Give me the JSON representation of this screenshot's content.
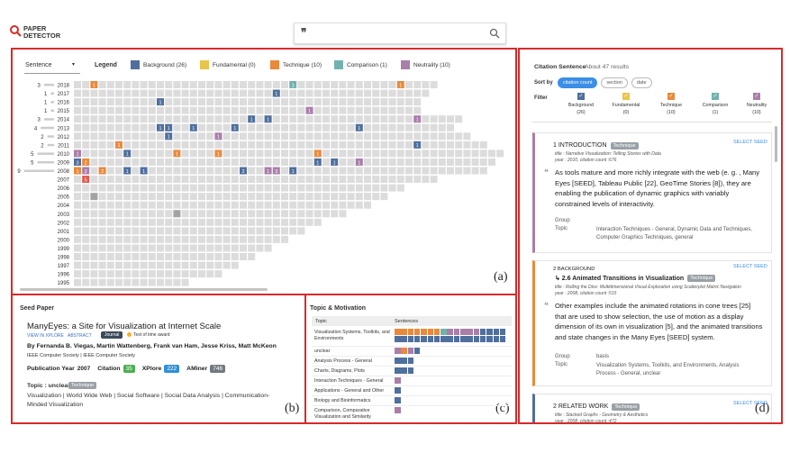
{
  "header": {
    "logo": [
      "PAPER",
      "DETECTOR"
    ]
  },
  "panel_labels": [
    "(a)",
    "(b)",
    "(c)",
    "(d)"
  ],
  "overview": {
    "mode": "Sentence",
    "legend_title": "Legend",
    "legend": [
      {
        "label": "Background (26)",
        "color": "#4f6f9d"
      },
      {
        "label": "Fundamental (0)",
        "color": "#e9c44b"
      },
      {
        "label": "Technique (10)",
        "color": "#e8893b"
      },
      {
        "label": "Comparison (1)",
        "color": "#72b2ae"
      },
      {
        "label": "Neutrality (10)",
        "color": "#a97ea9"
      }
    ],
    "rows": [
      {
        "year": 2018,
        "count": 3,
        "papers": 44,
        "cited": [
          {
            "at": 2,
            "kind": 2,
            "n": 1
          },
          {
            "at": 26,
            "kind": 3,
            "n": 1
          },
          {
            "at": 39,
            "kind": 2,
            "n": 1
          }
        ]
      },
      {
        "year": 2017,
        "count": 1,
        "papers": 43,
        "cited": [
          {
            "at": 24,
            "kind": 0,
            "n": 1
          }
        ]
      },
      {
        "year": 2016,
        "count": 1,
        "papers": 42,
        "cited": [
          {
            "at": 10,
            "kind": 0,
            "n": 1
          }
        ]
      },
      {
        "year": 2015,
        "count": 1,
        "papers": 42,
        "cited": [
          {
            "at": 28,
            "kind": 4,
            "n": 1
          }
        ]
      },
      {
        "year": 2014,
        "count": 3,
        "papers": 47,
        "cited": [
          {
            "at": 21,
            "kind": 0,
            "n": 1
          },
          {
            "at": 23,
            "kind": 0,
            "n": 1
          },
          {
            "at": 41,
            "kind": 4,
            "n": 1
          }
        ]
      },
      {
        "year": 2013,
        "count": 4,
        "papers": 46,
        "cited": [
          {
            "at": 10,
            "kind": 0,
            "n": 1
          },
          {
            "at": 11,
            "kind": 0,
            "n": 1
          },
          {
            "at": 14,
            "kind": 0,
            "n": 1
          },
          {
            "at": 19,
            "kind": 0,
            "n": 1
          },
          {
            "at": 34,
            "kind": 0,
            "n": 1
          }
        ]
      },
      {
        "year": 2012,
        "count": 2,
        "papers": 48,
        "cited": [
          {
            "at": 11,
            "kind": 0,
            "n": 1
          },
          {
            "at": 17,
            "kind": 4,
            "n": 1
          }
        ]
      },
      {
        "year": 2011,
        "count": 2,
        "papers": 50,
        "cited": [
          {
            "at": 5,
            "kind": 2,
            "n": 1
          },
          {
            "at": 41,
            "kind": 0,
            "n": 1
          }
        ]
      },
      {
        "year": 2010,
        "count": 5,
        "papers": 52,
        "cited": [
          {
            "at": 0,
            "kind": 4,
            "n": 1
          },
          {
            "at": 6,
            "kind": 0,
            "n": 1
          },
          {
            "at": 12,
            "kind": 2,
            "n": 1
          },
          {
            "at": 17,
            "kind": 2,
            "n": 1
          },
          {
            "at": 29,
            "kind": 2,
            "n": 1
          }
        ]
      },
      {
        "year": 2009,
        "count": 5,
        "papers": 51,
        "cited": [
          {
            "at": 0,
            "kind": 0,
            "n": 3
          },
          {
            "at": 1,
            "kind": 2,
            "n": 2
          },
          {
            "at": 29,
            "kind": 0,
            "n": 1
          },
          {
            "at": 31,
            "kind": 0,
            "n": 1
          },
          {
            "at": 34,
            "kind": 4,
            "n": 1
          }
        ]
      },
      {
        "year": 2008,
        "count": 9,
        "papers": 50,
        "cited": [
          {
            "at": 0,
            "kind": 2,
            "n": 1
          },
          {
            "at": 1,
            "kind": 4,
            "n": 2
          },
          {
            "at": 3,
            "kind": 2,
            "n": 2
          },
          {
            "at": 6,
            "kind": 0,
            "n": 1
          },
          {
            "at": 8,
            "kind": 0,
            "n": 1
          },
          {
            "at": 20,
            "kind": 0,
            "n": 2
          },
          {
            "at": 23,
            "kind": 4,
            "n": 1
          },
          {
            "at": 24,
            "kind": 4,
            "n": 3
          },
          {
            "at": 26,
            "kind": 0,
            "n": 1
          }
        ]
      },
      {
        "year": 2007,
        "count": null,
        "papers": 44,
        "cited": [
          {
            "at": 1,
            "color": "#e0584f",
            "n": 5
          }
        ]
      },
      {
        "year": 2006,
        "count": null,
        "papers": 40,
        "cited": []
      },
      {
        "year": 2005,
        "count": null,
        "papers": 38,
        "cited": [
          {
            "at": 2,
            "color": "#a3a3a3"
          }
        ]
      },
      {
        "year": 2004,
        "count": null,
        "papers": 36,
        "cited": []
      },
      {
        "year": 2003,
        "count": null,
        "papers": 33,
        "cited": [
          {
            "at": 12,
            "color": "#a3a3a3"
          }
        ]
      },
      {
        "year": 2002,
        "count": null,
        "papers": 30,
        "cited": []
      },
      {
        "year": 2001,
        "count": null,
        "papers": 28,
        "cited": []
      },
      {
        "year": 2000,
        "count": null,
        "papers": 26,
        "cited": []
      },
      {
        "year": 1999,
        "count": null,
        "papers": 24,
        "cited": []
      },
      {
        "year": 1998,
        "count": null,
        "papers": 22,
        "cited": []
      },
      {
        "year": 1997,
        "count": null,
        "papers": 20,
        "cited": []
      },
      {
        "year": 1996,
        "count": null,
        "papers": 18,
        "cited": []
      },
      {
        "year": 1995,
        "count": null,
        "papers": 14,
        "cited": []
      }
    ]
  },
  "seed": {
    "heading": "Seed Paper",
    "title": "ManyEyes: a Site for Visualization at Internet Scale",
    "links": [
      "VIEW IN XPLORE",
      "ABSTRACT"
    ],
    "venue": "Journal",
    "award": "Test of time award",
    "authors": "By Fernanda B. Viegas, Martin Wattenberg, Frank van Ham, Jesse Kriss, Matt McKeon",
    "publisher": "IEEE Computer Society | IEEE Computer Society",
    "stats": [
      {
        "label": "Publication Year",
        "value": 2007
      },
      {
        "label": "Citation",
        "value": 35,
        "color": "#4caf50"
      },
      {
        "label": "XPlore",
        "value": 222,
        "color": "#2f8fd8"
      },
      {
        "label": "AMiner",
        "value": 746,
        "color": "#707a80"
      }
    ],
    "topic_label": "Topic : unclear",
    "topic_badge": "Technique",
    "topics": "Visualization | World Wide Web | Social Software | Social Data Analysis | Communication-Minded Visualization"
  },
  "topics": {
    "heading": "Topic & Motivation",
    "columns": [
      "Topic",
      "Sentences"
    ],
    "rows": [
      {
        "topic": "Visualization Systems, Toolkits, and Environments",
        "sentences": [
          2,
          2,
          2,
          2,
          2,
          2,
          2,
          3,
          4,
          4,
          4,
          4,
          4,
          0,
          0,
          0,
          0,
          0,
          0,
          0,
          0,
          0,
          0,
          0,
          0,
          0,
          0,
          0,
          0,
          0,
          0,
          0,
          0,
          0
        ]
      },
      {
        "topic": "unclear",
        "sentences": [
          4,
          2,
          4,
          0
        ]
      },
      {
        "topic": "Analysis Process - General",
        "sentences": [
          0,
          0,
          0
        ]
      },
      {
        "topic": "Charts, Diagrams, Plots",
        "sentences": [
          0,
          0,
          0
        ]
      },
      {
        "topic": "Interaction Techniques - General",
        "sentences": [
          4
        ]
      },
      {
        "topic": "Applications - General and Other",
        "sentences": [
          0
        ]
      },
      {
        "topic": "Biology and Bioinformatics",
        "sentences": [
          0
        ]
      },
      {
        "topic": "Comparison, Comparative Visualization and Similarity",
        "sentences": [
          4
        ]
      }
    ]
  },
  "citations": {
    "heading": "Citation Sentence",
    "results": "About 47 results",
    "sort_label": "Sort by",
    "sort_options": [
      "citation count",
      "section",
      "date"
    ],
    "filter_label": "Filter",
    "filters": [
      {
        "name": "Background",
        "count": "(26)"
      },
      {
        "name": "Fundamental",
        "count": "(0)"
      },
      {
        "name": "Technique",
        "count": "(10)"
      },
      {
        "name": "Comparison",
        "count": "(1)"
      },
      {
        "name": "Neutrality",
        "count": "(10)"
      }
    ],
    "cards": [
      {
        "section": "1 INTRODUCTION",
        "subsection": null,
        "badge": "Technique",
        "action": "SELECT SEED",
        "kind": 4,
        "title": "title : Narrative Visualization: Telling Stories with Data",
        "meta": "year : 2010, citation count :676",
        "text": "As tools mature and more richly integrate with the web (e. g. , Many Eyes [SEED], Tableau Public [22], GeoTime Stories [8]), they are enabling the publication of dynamic graphics with variably constrained levels of interactivity.",
        "group_label": "Group",
        "group": "",
        "topic_label": "Topic",
        "topic": "Interaction Techniques - General, Dynamic Data and Techniques, Computer Graphics Techniques, general"
      },
      {
        "section": "2 BACKGROUND",
        "subsection": "↳ 2.6 Animated Transitions in Visualization",
        "badge": "Technique",
        "action": "SELECT SEED",
        "kind": 2,
        "title": "title : Rolling the Dice: Multidimensional Visual Exploration using Scatterplot Matrix Navigation",
        "meta": "year : 2008, citation count :515",
        "text": "Other examples include the animated rotations in cone trees [25] that are used to show selection, the use of motion as a display dimension of its own in visualization [5], and the animated transitions and state changes in the Many Eyes [SEED] system.",
        "group_label": "Group",
        "group": "basis",
        "topic_label": "Topic",
        "topic": "Visualization Systems, Toolkits, and Environments, Analysis Process - General, unclear"
      },
      {
        "section": "2 RELATED WORK",
        "subsection": null,
        "badge": "Technique",
        "action": "SELECT SEED",
        "kind": 0,
        "title": "title : Stacked Graphs - Geometry & Aesthetics",
        "meta": "year : 2008, citation count :472",
        "text": "",
        "group_label": "Group",
        "group": "",
        "topic_label": "Topic",
        "topic": ""
      }
    ]
  }
}
